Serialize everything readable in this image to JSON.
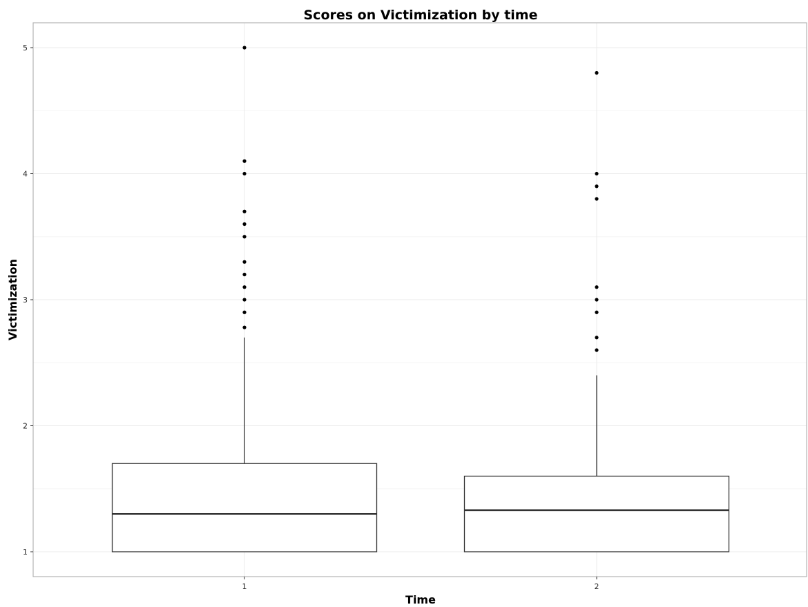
{
  "chart_data": {
    "type": "boxplot",
    "title": "Scores on Victimization by time",
    "xlabel": "Time",
    "ylabel": "Victimization",
    "categories": [
      "1",
      "2"
    ],
    "ylim": [
      0.8,
      5.2
    ],
    "yticks": [
      1,
      2,
      3,
      4,
      5
    ],
    "grid": true,
    "boxes": [
      {
        "category": "1",
        "min": 1.0,
        "q1": 1.0,
        "median": 1.3,
        "q3": 1.7,
        "max": 2.7,
        "outliers": [
          2.78,
          2.9,
          3.0,
          3.1,
          3.2,
          3.3,
          3.5,
          3.6,
          3.7,
          4.0,
          4.1,
          5.0
        ]
      },
      {
        "category": "2",
        "min": 1.0,
        "q1": 1.0,
        "median": 1.33,
        "q3": 1.6,
        "max": 2.4,
        "outliers": [
          2.6,
          2.7,
          2.9,
          3.0,
          3.1,
          3.8,
          3.9,
          4.0,
          4.8
        ]
      }
    ]
  }
}
